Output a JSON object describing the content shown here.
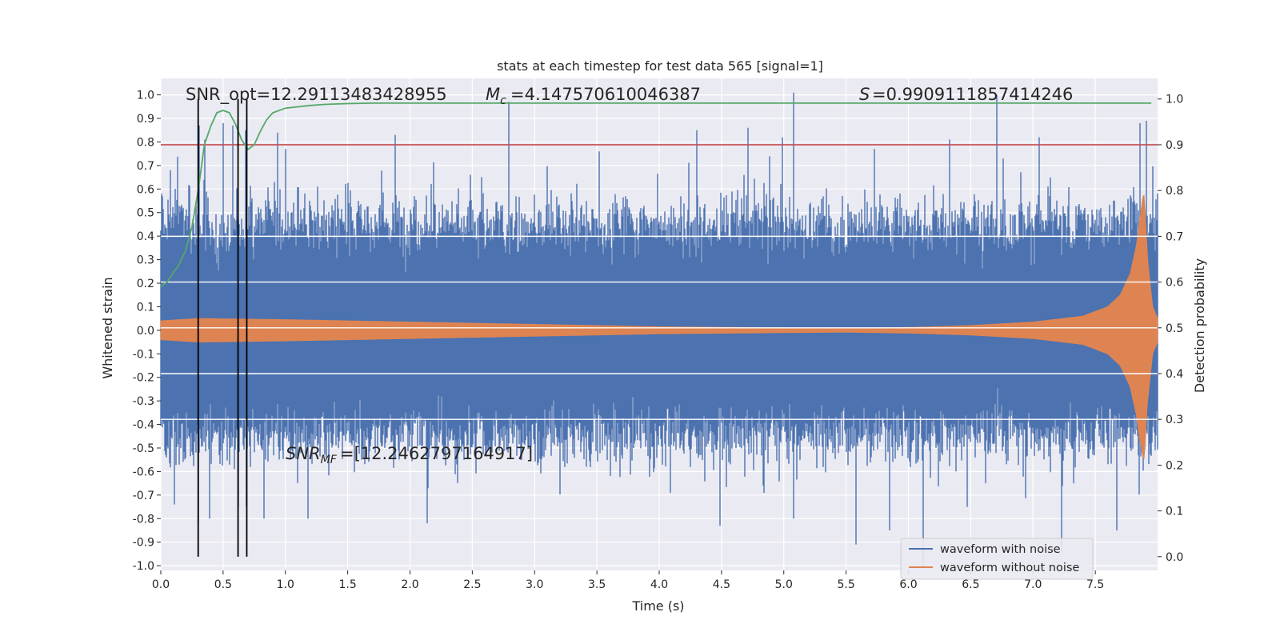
{
  "chart_data": {
    "type": "line",
    "title": "stats at each timestep for test data 565 [signal=1]",
    "xlabel": "Time (s)",
    "ylabel": "Whitened strain",
    "y2label": "Detection probability",
    "xlim": [
      0.0,
      8.0
    ],
    "ylim": [
      -1.02,
      1.07
    ],
    "y2lim": [
      -0.03,
      1.045
    ],
    "xticks": [
      "0.0",
      "0.5",
      "1.0",
      "1.5",
      "2.0",
      "2.5",
      "3.0",
      "3.5",
      "4.0",
      "4.5",
      "5.0",
      "5.5",
      "6.0",
      "6.5",
      "7.0",
      "7.5"
    ],
    "yticks": [
      "1.0",
      "0.9",
      "0.8",
      "0.7",
      "0.6",
      "0.5",
      "0.4",
      "0.3",
      "0.2",
      "0.1",
      "0.0",
      "-0.1",
      "-0.2",
      "-0.3",
      "-0.4",
      "-0.5",
      "-0.6",
      "-0.7",
      "-0.8",
      "-0.9",
      "-1.0"
    ],
    "y2ticks": [
      "1.0",
      "0.9",
      "0.8",
      "0.7",
      "0.6",
      "0.5",
      "0.4",
      "0.3",
      "0.2",
      "0.1",
      "0.0"
    ],
    "grid": true,
    "legend_position": "lower-right",
    "annotations": {
      "snr_opt": "SNR_opt=12.29113483428955",
      "mc": "=4.147570610046387",
      "s": "=0.9909111857414246",
      "snr_mf": "=[12.2462797164917]"
    },
    "threshold": {
      "y2": 0.9,
      "color": "#c44e52"
    },
    "vlines": [
      {
        "x": 0.3,
        "y2": [
          0.0,
          1.0
        ]
      },
      {
        "x": 0.62,
        "y2": [
          0.0,
          1.0
        ]
      },
      {
        "x": 0.69,
        "y2": [
          0.0,
          1.0
        ]
      }
    ],
    "series": [
      {
        "name": "waveform with noise",
        "color": "#4c72b0",
        "envelope_mean": 0.45,
        "x_range": [
          0.0,
          8.0
        ],
        "peaks_up": [
          [
            0.08,
            0.68
          ],
          [
            0.31,
            0.87
          ],
          [
            0.35,
            0.81
          ],
          [
            0.5,
            0.88
          ],
          [
            0.58,
            0.87
          ],
          [
            0.68,
            0.85
          ],
          [
            0.94,
            0.84
          ],
          [
            1.0,
            0.77
          ],
          [
            1.88,
            0.83
          ],
          [
            2.79,
            0.97
          ],
          [
            3.52,
            0.76
          ],
          [
            4.3,
            0.85
          ],
          [
            4.71,
            0.86
          ],
          [
            4.99,
            0.82
          ],
          [
            5.08,
            1.01
          ],
          [
            5.73,
            0.77
          ],
          [
            6.76,
            0.73
          ],
          [
            6.33,
            0.81
          ],
          [
            6.71,
            1.0
          ],
          [
            7.05,
            0.82
          ],
          [
            7.91,
            0.89
          ],
          [
            7.86,
            0.88
          ]
        ],
        "peaks_down": [
          [
            0.11,
            -0.74
          ],
          [
            0.3,
            -0.82
          ],
          [
            0.39,
            -0.8
          ],
          [
            0.62,
            -0.75
          ],
          [
            0.69,
            -0.75
          ],
          [
            0.83,
            -0.8
          ],
          [
            1.18,
            -0.8
          ],
          [
            2.14,
            -0.82
          ],
          [
            4.49,
            -0.83
          ],
          [
            5.08,
            -0.8
          ],
          [
            5.58,
            -0.91
          ],
          [
            5.85,
            -0.85
          ],
          [
            6.12,
            -1.01
          ],
          [
            7.23,
            -0.94
          ],
          [
            7.67,
            -0.85
          ]
        ]
      },
      {
        "name": "waveform without noise",
        "color": "#dd8452",
        "envelope": [
          [
            0.0,
            0.04
          ],
          [
            0.3,
            0.05
          ],
          [
            1.0,
            0.045
          ],
          [
            2.0,
            0.035
          ],
          [
            3.0,
            0.025
          ],
          [
            4.0,
            0.015
          ],
          [
            5.0,
            0.01
          ],
          [
            5.5,
            0.008
          ],
          [
            6.0,
            0.012
          ],
          [
            6.5,
            0.02
          ],
          [
            7.0,
            0.035
          ],
          [
            7.4,
            0.06
          ],
          [
            7.6,
            0.1
          ],
          [
            7.7,
            0.15
          ],
          [
            7.78,
            0.24
          ],
          [
            7.83,
            0.36
          ],
          [
            7.86,
            0.48
          ],
          [
            7.88,
            0.56
          ],
          [
            7.89,
            0.58
          ],
          [
            7.9,
            0.5
          ],
          [
            7.92,
            0.3
          ],
          [
            7.96,
            0.1
          ],
          [
            8.0,
            0.05
          ]
        ]
      },
      {
        "name": "detection probability",
        "color": "#55a868",
        "axis": "y2",
        "x": [
          0.0,
          0.05,
          0.1,
          0.15,
          0.2,
          0.25,
          0.3,
          0.35,
          0.4,
          0.45,
          0.5,
          0.55,
          0.6,
          0.65,
          0.7,
          0.75,
          0.8,
          0.85,
          0.9,
          1.0,
          1.1,
          1.2,
          1.3,
          1.4,
          1.5,
          1.7,
          2.0,
          3.0,
          4.0,
          5.0,
          6.0,
          7.0,
          7.5,
          7.95
        ],
        "y": [
          0.59,
          0.6,
          0.62,
          0.64,
          0.67,
          0.72,
          0.8,
          0.9,
          0.94,
          0.97,
          0.975,
          0.97,
          0.945,
          0.91,
          0.89,
          0.9,
          0.93,
          0.955,
          0.97,
          0.98,
          0.983,
          0.986,
          0.988,
          0.989,
          0.99,
          0.991,
          0.991,
          0.991,
          0.991,
          0.991,
          0.991,
          0.991,
          0.991,
          0.991
        ]
      }
    ]
  }
}
